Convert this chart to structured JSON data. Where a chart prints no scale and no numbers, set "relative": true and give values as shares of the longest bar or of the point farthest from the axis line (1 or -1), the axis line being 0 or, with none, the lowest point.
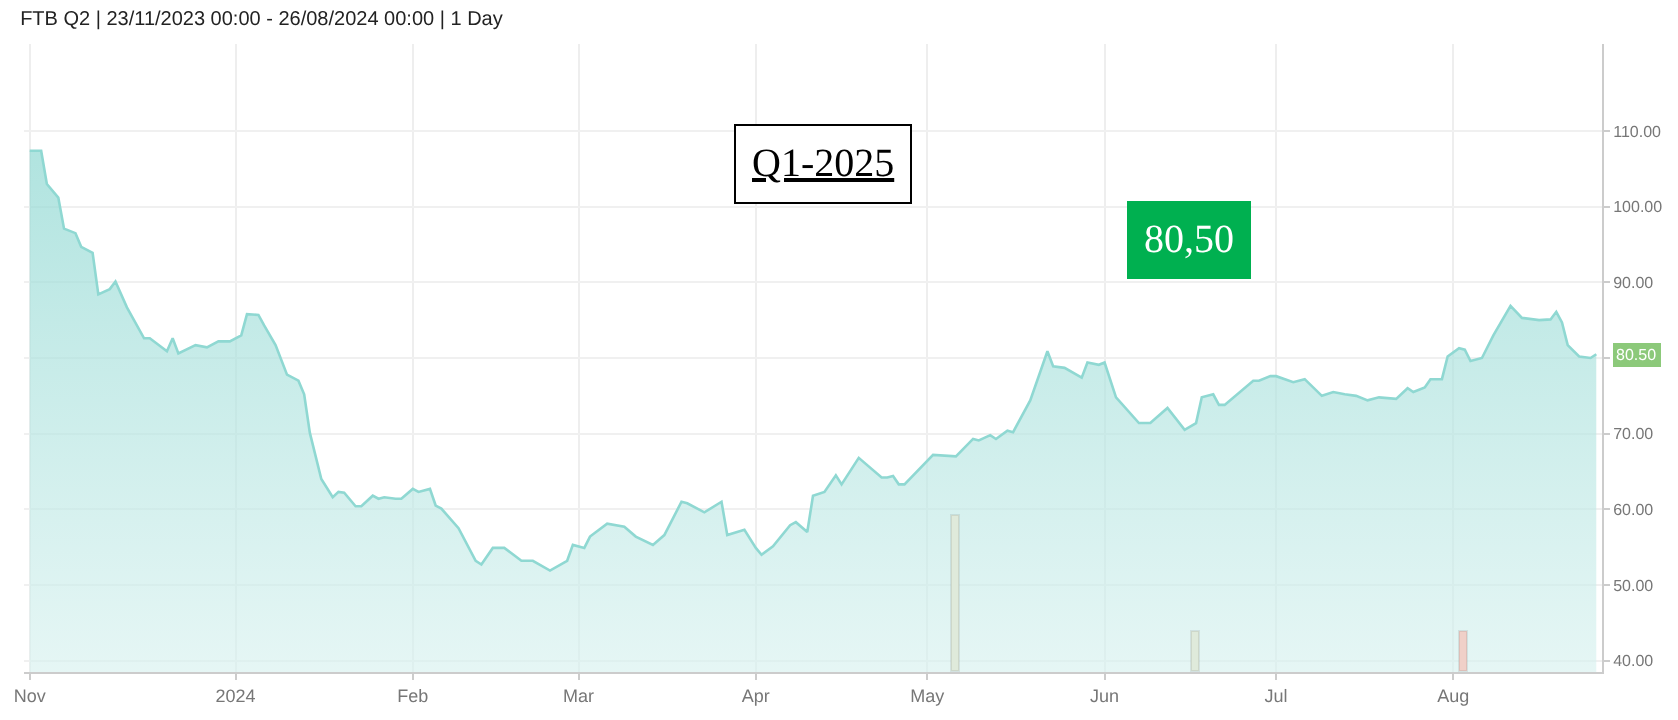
{
  "chart_data": [
    {
      "type": "area",
      "title": "FTB Q2 | 23/11/2023 00:00 - 26/08/2024 00:00 | 1 Day",
      "x": [
        "2023-11-26",
        "2023-11-28",
        "2023-11-29",
        "2023-12-01",
        "2023-12-02",
        "2023-12-04",
        "2023-12-05",
        "2023-12-07",
        "2023-12-08",
        "2023-12-10",
        "2023-12-11",
        "2023-12-13",
        "2023-12-16",
        "2023-12-17",
        "2023-12-20",
        "2023-12-21",
        "2023-12-22",
        "2023-12-25",
        "2023-12-27",
        "2023-12-29",
        "2023-12-31",
        "2024-01-02",
        "2024-01-03",
        "2024-01-05",
        "2024-01-06",
        "2024-01-08",
        "2024-01-10",
        "2024-01-12",
        "2024-01-13",
        "2024-01-14",
        "2024-01-16",
        "2024-01-18",
        "2024-01-19",
        "2024-01-20",
        "2024-01-22",
        "2024-01-23",
        "2024-01-25",
        "2024-01-26",
        "2024-01-27",
        "2024-01-29",
        "2024-01-30",
        "2024-02-01",
        "2024-02-02",
        "2024-02-04",
        "2024-02-05",
        "2024-02-06",
        "2024-02-09",
        "2024-02-12",
        "2024-02-13",
        "2024-02-15",
        "2024-02-17",
        "2024-02-20",
        "2024-02-22",
        "2024-02-25",
        "2024-02-28",
        "2024-02-29",
        "2024-03-02",
        "2024-03-03",
        "2024-03-06",
        "2024-03-09",
        "2024-03-11",
        "2024-03-14",
        "2024-03-16",
        "2024-03-19",
        "2024-03-20",
        "2024-03-23",
        "2024-03-26",
        "2024-03-27",
        "2024-03-30",
        "2024-04-01",
        "2024-04-02",
        "2024-04-04",
        "2024-04-07",
        "2024-04-08",
        "2024-04-10",
        "2024-04-11",
        "2024-04-13",
        "2024-04-15",
        "2024-04-16",
        "2024-04-19",
        "2024-04-23",
        "2024-04-24",
        "2024-04-25",
        "2024-04-26",
        "2024-04-27",
        "2024-05-02",
        "2024-05-06",
        "2024-05-09",
        "2024-05-10",
        "2024-05-12",
        "2024-05-13",
        "2024-05-15",
        "2024-05-16",
        "2024-05-19",
        "2024-05-22",
        "2024-05-23",
        "2024-05-25",
        "2024-05-28",
        "2024-05-29",
        "2024-05-31",
        "2024-06-01",
        "2024-06-03",
        "2024-06-07",
        "2024-06-09",
        "2024-06-12",
        "2024-06-15",
        "2024-06-17",
        "2024-06-18",
        "2024-06-20",
        "2024-06-21",
        "2024-06-22",
        "2024-06-27",
        "2024-06-28",
        "2024-06-30",
        "2024-07-01",
        "2024-07-04",
        "2024-07-06",
        "2024-07-09",
        "2024-07-11",
        "2024-07-13",
        "2024-07-15",
        "2024-07-17",
        "2024-07-19",
        "2024-07-22",
        "2024-07-24",
        "2024-07-25",
        "2024-07-27",
        "2024-07-28",
        "2024-07-30",
        "2024-07-31",
        "2024-08-02",
        "2024-08-03",
        "2024-08-04",
        "2024-08-06",
        "2024-08-08",
        "2024-08-11",
        "2024-08-13",
        "2024-08-16",
        "2024-08-18",
        "2024-08-19",
        "2024-08-20",
        "2024-08-21",
        "2024-08-23",
        "2024-08-25",
        "2024-08-26"
      ],
      "series": [
        {
          "color": "#8fd8d2",
          "values": [
            107.4,
            107.4,
            103.0,
            101.2,
            97.1,
            96.5,
            94.7,
            93.9,
            88.4,
            89.1,
            90.1,
            86.7,
            82.6,
            82.6,
            80.9,
            82.6,
            80.6,
            81.7,
            81.4,
            82.2,
            82.2,
            83.0,
            85.8,
            85.7,
            84.3,
            81.7,
            77.8,
            77.0,
            75.2,
            70.1,
            64.0,
            61.6,
            62.3,
            62.2,
            60.4,
            60.4,
            61.8,
            61.4,
            61.6,
            61.4,
            61.4,
            62.7,
            62.3,
            62.7,
            60.5,
            60.1,
            57.5,
            53.2,
            52.7,
            54.9,
            54.9,
            53.2,
            53.2,
            51.9,
            53.2,
            55.3,
            54.9,
            56.4,
            58.1,
            57.7,
            56.4,
            55.3,
            56.6,
            61.0,
            60.8,
            59.6,
            61.0,
            56.6,
            57.3,
            54.9,
            54.0,
            55.1,
            57.9,
            58.3,
            57.0,
            61.8,
            62.3,
            64.5,
            63.3,
            66.8,
            64.2,
            64.2,
            64.4,
            63.3,
            63.3,
            67.2,
            67.0,
            69.3,
            69.1,
            69.8,
            69.3,
            70.4,
            70.2,
            74.4,
            80.9,
            78.9,
            78.7,
            77.4,
            79.4,
            79.1,
            79.4,
            74.8,
            71.4,
            71.4,
            73.4,
            70.5,
            71.4,
            74.8,
            75.2,
            73.8,
            73.8,
            77.0,
            77.0,
            77.6,
            77.6,
            76.8,
            77.2,
            75.0,
            75.5,
            75.2,
            75.0,
            74.4,
            74.8,
            74.6,
            76.0,
            75.5,
            76.1,
            77.2,
            77.2,
            80.2,
            81.3,
            81.1,
            79.6,
            80.0,
            83.0,
            86.9,
            85.3,
            85.0,
            85.1,
            86.1,
            84.7,
            81.7,
            80.2,
            80.0,
            80.5
          ]
        }
      ],
      "xlim": [
        "2023-11-25",
        "2024-08-27"
      ],
      "xticks": [
        {
          "value": "2023-11-26",
          "label": "Nov"
        },
        {
          "value": "2024-01-01",
          "label": "2024"
        },
        {
          "value": "2024-02-01",
          "label": "Feb"
        },
        {
          "value": "2024-03-01",
          "label": "Mar"
        },
        {
          "value": "2024-04-01",
          "label": "Apr"
        },
        {
          "value": "2024-05-01",
          "label": "May"
        },
        {
          "value": "2024-06-01",
          "label": "Jun"
        },
        {
          "value": "2024-07-01",
          "label": "Jul"
        },
        {
          "value": "2024-08-01",
          "label": "Aug"
        }
      ],
      "ylim": [
        38.5,
        121.5
      ],
      "yticks": [
        {
          "value": 40,
          "label": "40.00"
        },
        {
          "value": 50,
          "label": "50.00"
        },
        {
          "value": 60,
          "label": "60.00"
        },
        {
          "value": 70,
          "label": "70.00"
        },
        {
          "value": 80,
          "label": null
        },
        {
          "value": 90,
          "label": "90.00"
        },
        {
          "value": 100,
          "label": "100.00"
        },
        {
          "value": 110,
          "label": "110.00"
        }
      ],
      "grid": true,
      "annotations": [
        "Q1-2025",
        "80,50",
        {
          "text": "80.50",
          "x": "2024-08-26",
          "y": 80.5
        }
      ]
    },
    {
      "type": "bar",
      "relative": true,
      "x": [
        "2024-05-06",
        "2024-06-17",
        "2024-08-03"
      ],
      "values": [
        1,
        0.25,
        0.25
      ],
      "colors": [
        "#dfeadb",
        "#dfeadb",
        "#f0d0c8"
      ],
      "xlim": [
        "2023-11-25",
        "2024-08-27"
      ]
    }
  ]
}
